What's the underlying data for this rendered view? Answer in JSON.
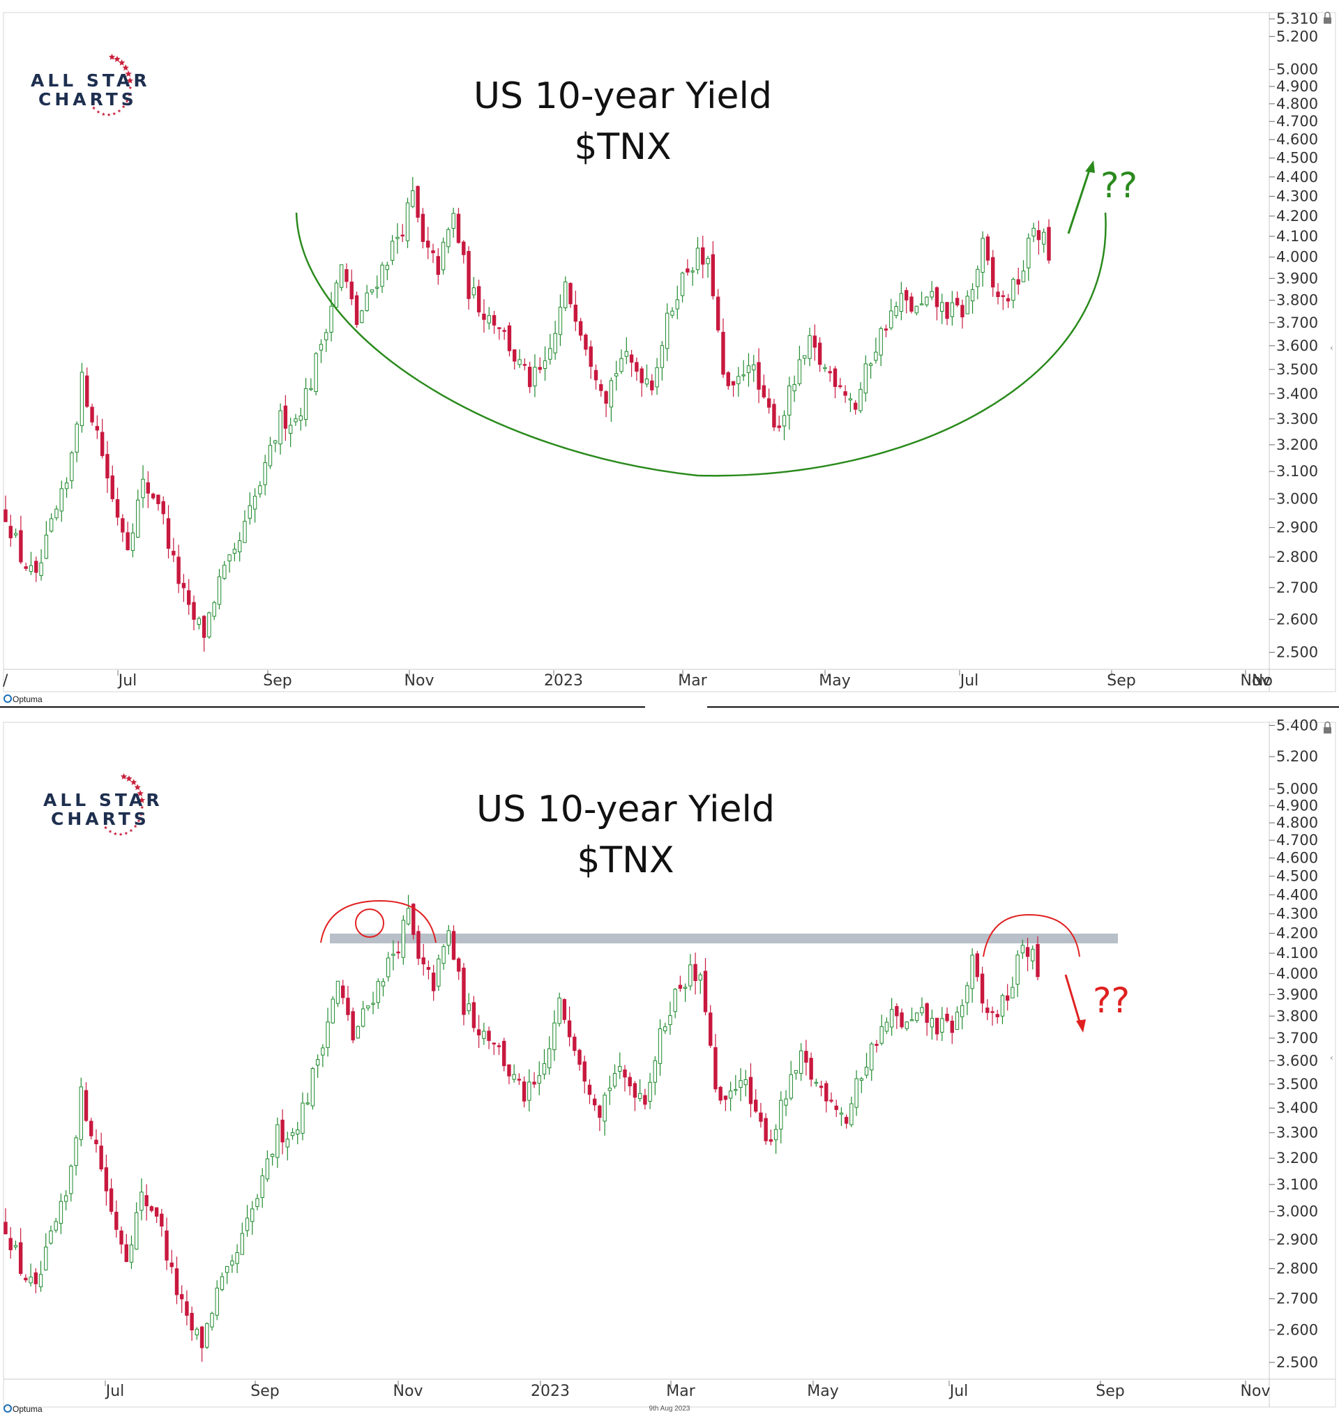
{
  "colors": {
    "up": "#1f8a2e",
    "down": "#c8183e",
    "arc_green": "#2a8a1c",
    "annot_red": "#e02020",
    "resistance_band": "#b8bfc8",
    "logo_navy": "#1e2f4f",
    "logo_star": "#c8203c"
  },
  "chart_data": [
    {
      "type": "candlestick",
      "title": "US 10-year Yield",
      "subtitle": "$TNX",
      "logo": {
        "line1": "ALL STAR",
        "line2": "CHARTS",
        "icon": "star-ring-icon"
      },
      "y_ticks": [
        "5.310",
        "5.200",
        "5.000",
        "4.900",
        "4.800",
        "4.700",
        "4.600",
        "4.500",
        "4.400",
        "4.300",
        "4.200",
        "4.100",
        "4.000",
        "3.900",
        "3.800",
        "3.700",
        "3.600",
        "3.500",
        "3.400",
        "3.300",
        "3.200",
        "3.100",
        "3.000",
        "2.900",
        "2.800",
        "2.700",
        "2.600",
        "2.500"
      ],
      "ylim": [
        2.45,
        5.35
      ],
      "y_scale": "log",
      "x_ticks": [
        "Jul",
        "Sep",
        "Nov",
        "2023",
        "Mar",
        "May",
        "Jul",
        "Sep",
        "Nov"
      ],
      "edge_labels": {
        "left": "/",
        "right": "No"
      },
      "annotation": {
        "text": "??",
        "direction": "up",
        "shape": "rounding-bottom-arc"
      },
      "footer": "Optuma"
    },
    {
      "type": "candlestick",
      "title": "US 10-year Yield",
      "subtitle": "$TNX",
      "logo": {
        "line1": "ALL STAR",
        "line2": "CHARTS",
        "icon": "star-ring-icon"
      },
      "y_ticks": [
        "5.400",
        "5.200",
        "5.000",
        "4.900",
        "4.800",
        "4.700",
        "4.600",
        "4.500",
        "4.400",
        "4.300",
        "4.200",
        "4.100",
        "4.000",
        "3.900",
        "3.800",
        "3.700",
        "3.600",
        "3.500",
        "3.400",
        "3.300",
        "3.200",
        "3.100",
        "3.000",
        "2.900",
        "2.800",
        "2.700",
        "2.600",
        "2.500"
      ],
      "ylim": [
        2.45,
        5.42
      ],
      "y_scale": "log",
      "x_ticks": [
        "Jul",
        "Sep",
        "Nov",
        "2023",
        "Mar",
        "May",
        "Jul",
        "Sep",
        "Nov"
      ],
      "annotation": {
        "text": "??",
        "direction": "down",
        "shape": "double-top-at-resistance"
      },
      "resistance": 4.2,
      "footer": "Optuma",
      "date_stamp": "9th Aug 2023"
    }
  ],
  "price_path": {
    "anchors": [
      [
        0,
        2.95
      ],
      [
        3,
        2.8
      ],
      [
        6,
        2.72
      ],
      [
        9,
        2.9
      ],
      [
        12,
        3.05
      ],
      [
        15,
        3.45
      ],
      [
        18,
        3.25
      ],
      [
        21,
        3.0
      ],
      [
        24,
        2.85
      ],
      [
        27,
        3.05
      ],
      [
        30,
        3.0
      ],
      [
        33,
        2.78
      ],
      [
        36,
        2.62
      ],
      [
        39,
        2.56
      ],
      [
        42,
        2.72
      ],
      [
        45,
        2.8
      ],
      [
        48,
        2.95
      ],
      [
        51,
        3.1
      ],
      [
        54,
        3.3
      ],
      [
        57,
        3.3
      ],
      [
        60,
        3.45
      ],
      [
        63,
        3.7
      ],
      [
        66,
        3.95
      ],
      [
        69,
        3.7
      ],
      [
        72,
        3.85
      ],
      [
        75,
        4.0
      ],
      [
        78,
        4.15
      ],
      [
        80,
        4.3
      ],
      [
        82,
        4.05
      ],
      [
        85,
        3.95
      ],
      [
        88,
        4.2
      ],
      [
        91,
        3.85
      ],
      [
        94,
        3.75
      ],
      [
        97,
        3.7
      ],
      [
        100,
        3.55
      ],
      [
        103,
        3.45
      ],
      [
        106,
        3.5
      ],
      [
        108,
        3.65
      ],
      [
        110,
        3.85
      ],
      [
        112,
        3.75
      ],
      [
        115,
        3.55
      ],
      [
        118,
        3.4
      ],
      [
        121,
        3.55
      ],
      [
        124,
        3.5
      ],
      [
        127,
        3.45
      ],
      [
        130,
        3.7
      ],
      [
        132,
        3.85
      ],
      [
        134,
        3.95
      ],
      [
        136,
        4.0
      ],
      [
        138,
        3.95
      ],
      [
        139,
        3.85
      ],
      [
        141,
        3.45
      ],
      [
        143,
        3.4
      ],
      [
        146,
        3.55
      ],
      [
        149,
        3.35
      ],
      [
        152,
        3.28
      ],
      [
        155,
        3.45
      ],
      [
        158,
        3.6
      ],
      [
        161,
        3.5
      ],
      [
        164,
        3.45
      ],
      [
        167,
        3.35
      ],
      [
        170,
        3.55
      ],
      [
        173,
        3.7
      ],
      [
        176,
        3.8
      ],
      [
        179,
        3.75
      ],
      [
        182,
        3.8
      ],
      [
        185,
        3.75
      ],
      [
        188,
        3.75
      ],
      [
        190,
        3.85
      ],
      [
        192,
        4.05
      ],
      [
        194,
        3.85
      ],
      [
        196,
        3.8
      ],
      [
        198,
        3.85
      ],
      [
        200,
        3.95
      ],
      [
        202,
        4.15
      ],
      [
        204,
        4.08
      ],
      [
        205,
        4.0
      ]
    ]
  }
}
